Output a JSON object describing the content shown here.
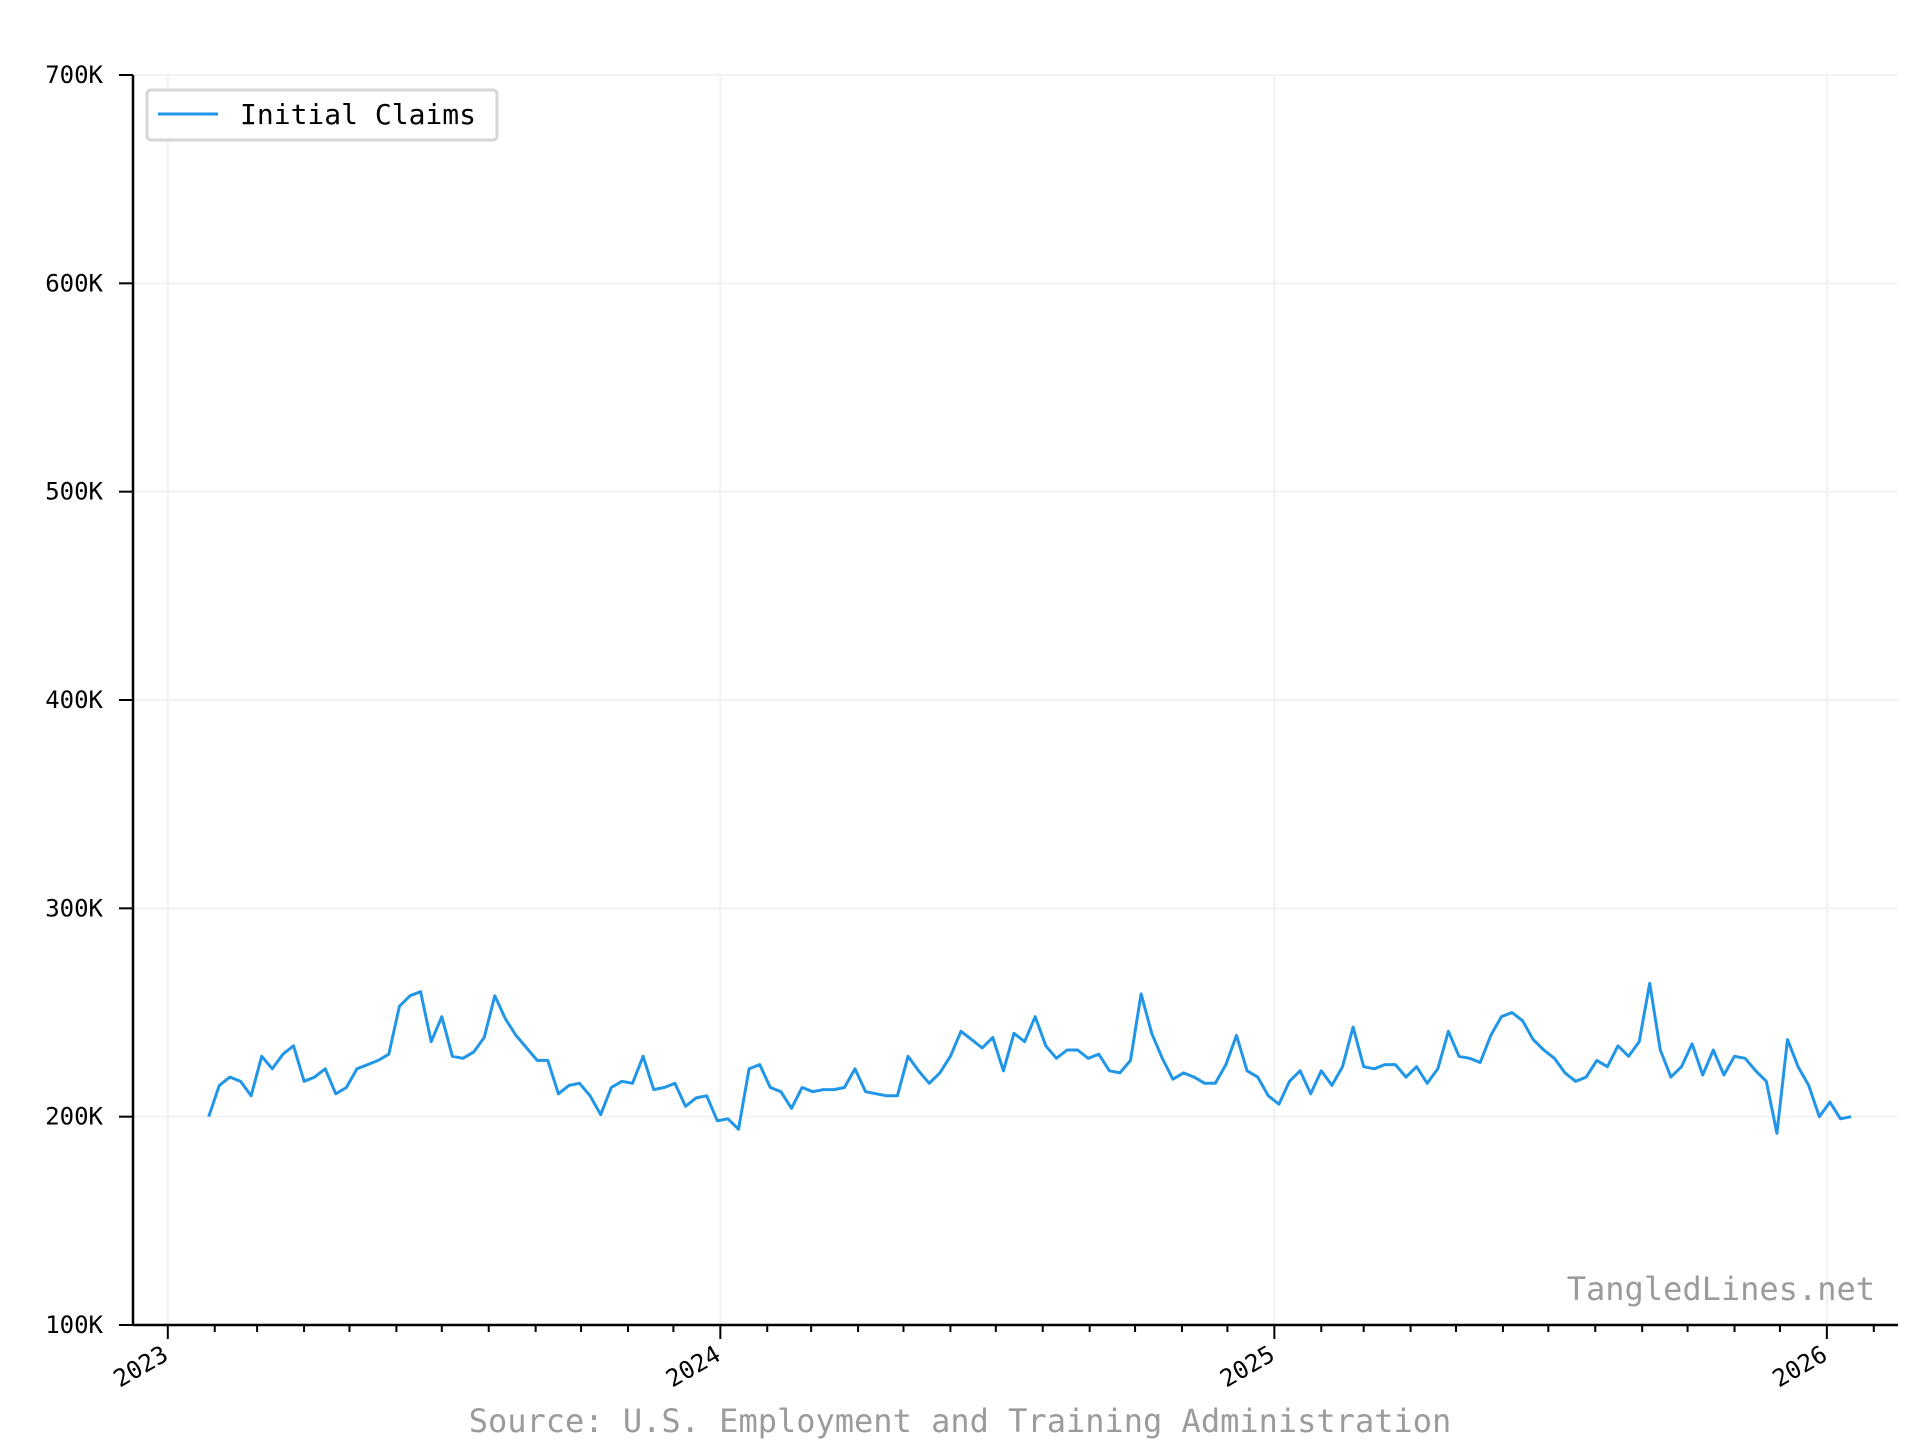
{
  "watermark": "TangledLines.net",
  "source": "Source: U.S. Employment and Training Administration",
  "chart_data": {
    "type": "line",
    "series": [
      {
        "name": "Initial Claims",
        "color": "#2196e8",
        "x": [
          "2023-01-28",
          "2023-02-04",
          "2023-02-11",
          "2023-02-18",
          "2023-02-25",
          "2023-03-04",
          "2023-03-11",
          "2023-03-18",
          "2023-03-25",
          "2023-04-01",
          "2023-04-08",
          "2023-04-15",
          "2023-04-22",
          "2023-04-29",
          "2023-05-06",
          "2023-05-13",
          "2023-05-20",
          "2023-05-27",
          "2023-06-03",
          "2023-06-10",
          "2023-06-17",
          "2023-06-24",
          "2023-07-01",
          "2023-07-08",
          "2023-07-15",
          "2023-07-22",
          "2023-07-29",
          "2023-08-05",
          "2023-08-12",
          "2023-08-19",
          "2023-08-26",
          "2023-09-02",
          "2023-09-09",
          "2023-09-16",
          "2023-09-23",
          "2023-09-30",
          "2023-10-07",
          "2023-10-14",
          "2023-10-21",
          "2023-10-28",
          "2023-11-04",
          "2023-11-11",
          "2023-11-18",
          "2023-11-25",
          "2023-12-02",
          "2023-12-09",
          "2023-12-16",
          "2023-12-23",
          "2023-12-30",
          "2024-01-06",
          "2024-01-13",
          "2024-01-20",
          "2024-01-27",
          "2024-02-03",
          "2024-02-10",
          "2024-02-17",
          "2024-02-24",
          "2024-03-02",
          "2024-03-09",
          "2024-03-16",
          "2024-03-23",
          "2024-03-30",
          "2024-04-06",
          "2024-04-13",
          "2024-04-20",
          "2024-04-27",
          "2024-05-04",
          "2024-05-11",
          "2024-05-18",
          "2024-05-25",
          "2024-06-01",
          "2024-06-08",
          "2024-06-15",
          "2024-06-22",
          "2024-06-29",
          "2024-07-06",
          "2024-07-13",
          "2024-07-20",
          "2024-07-27",
          "2024-08-03",
          "2024-08-10",
          "2024-08-17",
          "2024-08-24",
          "2024-08-31",
          "2024-09-07",
          "2024-09-14",
          "2024-09-21",
          "2024-09-28",
          "2024-10-05",
          "2024-10-12",
          "2024-10-19",
          "2024-10-26",
          "2024-11-02",
          "2024-11-09",
          "2024-11-16",
          "2024-11-23",
          "2024-11-30",
          "2024-12-07",
          "2024-12-14",
          "2024-12-21",
          "2024-12-28",
          "2025-01-04",
          "2025-01-11",
          "2025-01-18",
          "2025-01-25",
          "2025-02-01",
          "2025-02-08",
          "2025-02-15",
          "2025-02-22",
          "2025-03-01",
          "2025-03-08",
          "2025-03-15",
          "2025-03-22",
          "2025-03-29",
          "2025-04-05",
          "2025-04-12",
          "2025-04-19",
          "2025-04-26",
          "2025-05-03",
          "2025-05-10",
          "2025-05-17",
          "2025-05-24",
          "2025-05-31",
          "2025-06-07",
          "2025-06-14",
          "2025-06-21",
          "2025-06-28",
          "2025-07-05",
          "2025-07-12",
          "2025-07-19",
          "2025-07-26",
          "2025-08-02",
          "2025-08-09",
          "2025-08-16",
          "2025-08-23",
          "2025-08-30",
          "2025-09-06",
          "2025-09-13",
          "2025-09-20",
          "2025-09-27",
          "2025-10-04",
          "2025-10-11",
          "2025-10-18",
          "2025-10-25",
          "2025-11-01",
          "2025-11-08",
          "2025-11-15",
          "2025-11-22",
          "2025-11-29",
          "2025-12-06",
          "2025-12-13",
          "2025-12-20",
          "2025-12-27",
          "2026-01-03",
          "2026-01-10",
          "2026-01-17"
        ],
        "y": [
          200000,
          215000,
          219000,
          217000,
          210000,
          229000,
          223000,
          230000,
          234000,
          217000,
          219000,
          223000,
          211000,
          214000,
          223000,
          225000,
          227000,
          230000,
          253000,
          258000,
          260000,
          236000,
          248000,
          229000,
          228000,
          231000,
          238000,
          258000,
          247000,
          239000,
          233000,
          227000,
          227000,
          211000,
          215000,
          216000,
          210000,
          201000,
          214000,
          217000,
          216000,
          229000,
          213000,
          214000,
          216000,
          205000,
          209000,
          210000,
          198000,
          199000,
          194000,
          223000,
          225000,
          214000,
          212000,
          204000,
          214000,
          212000,
          213000,
          213000,
          214000,
          223000,
          212000,
          211000,
          210000,
          210000,
          229000,
          222000,
          216000,
          221000,
          229000,
          241000,
          237000,
          233000,
          238000,
          222000,
          240000,
          236000,
          248000,
          234000,
          228000,
          232000,
          232000,
          228000,
          230000,
          222000,
          221000,
          227000,
          259000,
          240000,
          228000,
          218000,
          221000,
          219000,
          216000,
          216000,
          225000,
          239000,
          222000,
          219000,
          210000,
          206000,
          217000,
          222000,
          211000,
          222000,
          215000,
          224000,
          243000,
          224000,
          223000,
          225000,
          225000,
          219000,
          224000,
          216000,
          223000,
          241000,
          229000,
          228000,
          226000,
          239000,
          248000,
          250000,
          246000,
          237000,
          232000,
          228000,
          221000,
          217000,
          219000,
          227000,
          224000,
          234000,
          229000,
          236000,
          264000,
          232000,
          219000,
          224000,
          235000,
          220000,
          232000,
          220000,
          229000,
          228000,
          222000,
          217000,
          192000,
          237000,
          224000,
          215000,
          200000,
          207000,
          199000,
          200000
        ]
      }
    ],
    "ylim": [
      100000,
      700000
    ],
    "yticks": [
      100000,
      200000,
      300000,
      400000,
      500000,
      600000,
      700000
    ],
    "ytick_labels": [
      "100K",
      "200K",
      "300K",
      "400K",
      "500K",
      "600K",
      "700K"
    ],
    "xlim": [
      "2022-12-09",
      "2026-02-17"
    ],
    "xticks": [
      "2023-01-01",
      "2024-01-01",
      "2025-01-01",
      "2026-01-01"
    ],
    "xtick_labels": [
      "2023",
      "2024",
      "2025",
      "2026"
    ],
    "grid": true,
    "legend": "top-left",
    "xlabel": "",
    "ylabel": "",
    "title": ""
  }
}
